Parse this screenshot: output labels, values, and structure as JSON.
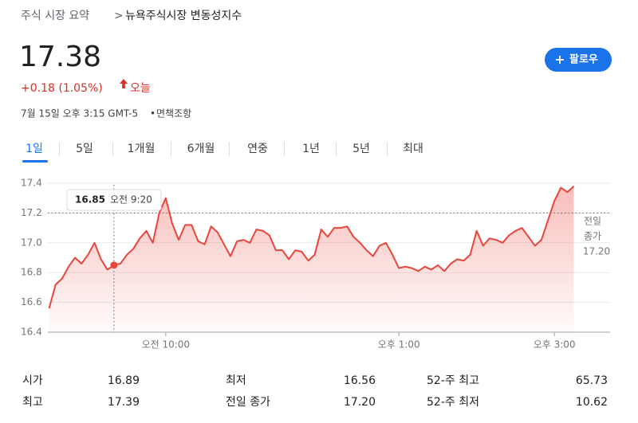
{
  "breadcrumb": {
    "parent": "주식 시장 요약",
    "separator": ">",
    "current": "뉴욕주식시장 변동성지수"
  },
  "quote": {
    "price": "17.38",
    "change": "+0.18 (1.05%)",
    "period": "오늘",
    "timestamp": "7월 15일 오후 3:15 GMT-5",
    "disclaimer": "면책조항"
  },
  "follow_button": "팔로우",
  "tabs": [
    "1일",
    "5일",
    "1개월",
    "6개월",
    "연중",
    "1년",
    "5년",
    "최대"
  ],
  "chart_data": {
    "type": "line",
    "x": [
      510,
      515,
      520,
      525,
      530,
      535,
      540,
      545,
      550,
      555,
      560,
      565,
      570,
      575,
      580,
      585,
      590,
      595,
      600,
      605,
      610,
      615,
      620,
      625,
      630,
      635,
      640,
      645,
      650,
      655,
      660,
      665,
      670,
      675,
      680,
      685,
      690,
      695,
      700,
      705,
      710,
      715,
      720,
      725,
      730,
      735,
      740,
      745,
      750,
      755,
      760,
      765,
      770,
      775,
      780,
      785,
      790,
      795,
      800,
      805,
      810,
      815,
      820,
      825,
      830,
      835,
      840,
      845,
      850,
      855,
      860,
      865,
      870,
      875,
      880,
      885,
      890,
      895,
      900,
      905,
      910,
      915
    ],
    "series": [
      {
        "color": "#e8453c",
        "values": [
          16.56,
          16.72,
          16.76,
          16.84,
          16.9,
          16.86,
          16.92,
          17.0,
          16.89,
          16.82,
          16.85,
          16.86,
          16.92,
          16.96,
          17.03,
          17.08,
          17.0,
          17.2,
          17.3,
          17.13,
          17.02,
          17.12,
          17.12,
          17.01,
          16.99,
          17.11,
          17.07,
          16.99,
          16.91,
          17.01,
          17.02,
          17.0,
          17.09,
          17.08,
          17.05,
          16.95,
          16.95,
          16.89,
          16.95,
          16.94,
          16.88,
          16.92,
          17.09,
          17.04,
          17.1,
          17.1,
          17.11,
          17.04,
          17.0,
          16.95,
          16.91,
          16.98,
          17.0,
          16.92,
          16.83,
          16.84,
          16.83,
          16.81,
          16.84,
          16.82,
          16.85,
          16.81,
          16.86,
          16.89,
          16.88,
          16.92,
          17.08,
          16.98,
          17.03,
          17.02,
          17.0,
          17.05,
          17.08,
          17.1,
          17.04,
          16.98,
          17.02,
          17.15,
          17.28,
          17.37,
          17.34,
          17.38
        ]
      }
    ],
    "xlim": [
      509,
      943
    ],
    "xticks": [
      {
        "value": 600,
        "label": "오전 10:00"
      },
      {
        "value": 780,
        "label": "오후 1:00"
      },
      {
        "value": 900,
        "label": "오후 3:00"
      }
    ],
    "ylim": [
      16.4,
      17.4
    ],
    "yticks": [
      16.4,
      16.6,
      16.8,
      {
        "value": 17,
        "label": "17.0"
      },
      17.2,
      17.4
    ],
    "grid": true,
    "reference": {
      "label": [
        "전일",
        "종가"
      ],
      "value": 17.2,
      "value_label": "17.20"
    },
    "tooltip": {
      "index": 10,
      "time": "오전 9:20"
    }
  },
  "stats": [
    [
      [
        "시가",
        "16.89"
      ],
      [
        "최저",
        "16.56"
      ],
      [
        "52-주 최고",
        "65.73"
      ]
    ],
    [
      [
        "최고",
        "17.39"
      ],
      [
        "전일 종가",
        "17.20"
      ],
      [
        "52-주 최저",
        "10.62"
      ]
    ]
  ]
}
